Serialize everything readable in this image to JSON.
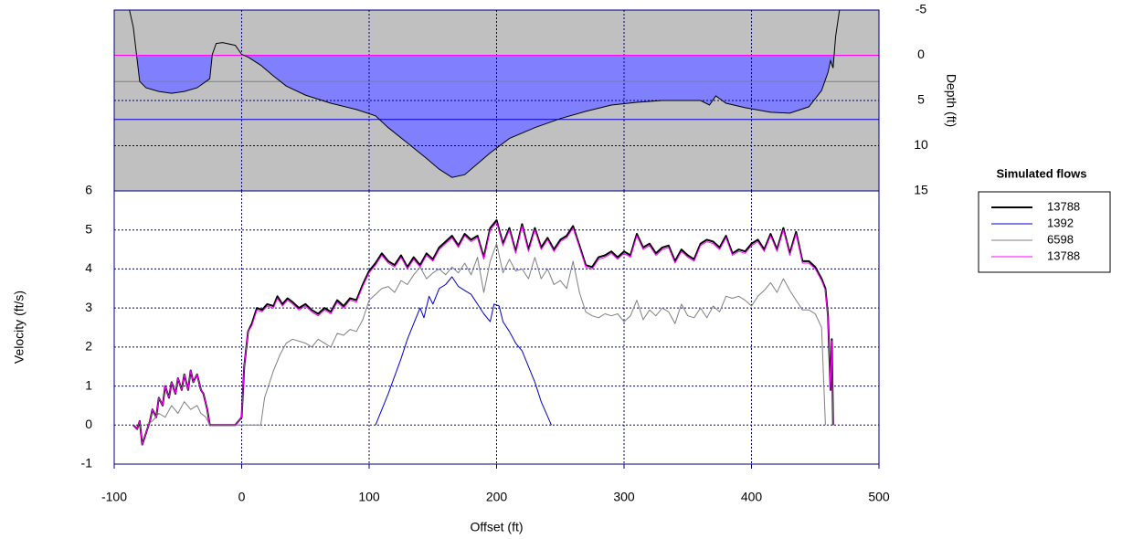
{
  "chart_data": [
    {
      "type": "area",
      "y_label": "Depth (ft)",
      "y_inverted": true,
      "xlim": [
        -100,
        500
      ],
      "xticks": [
        -100,
        0,
        100,
        200,
        300,
        400,
        500
      ],
      "ylim": [
        -5,
        15
      ],
      "yticks": [
        -5,
        0,
        5,
        10,
        15
      ],
      "grid": true,
      "background_color": "#c0c0c0",
      "fill_color": "#8080ff",
      "color": "#000000",
      "x": [
        -88,
        -85,
        -80,
        -75,
        -65,
        -55,
        -45,
        -35,
        -28,
        -25,
        -23,
        -20,
        -15,
        -5,
        0,
        5,
        15,
        25,
        35,
        50,
        70,
        90,
        105,
        115,
        130,
        145,
        155,
        165,
        175,
        185,
        195,
        210,
        230,
        250,
        270,
        290,
        310,
        330,
        360,
        367,
        372,
        380,
        395,
        415,
        430,
        445,
        455,
        460,
        462,
        464,
        466,
        469
      ],
      "values": [
        -5,
        -3.1,
        2.9,
        3.6,
        4.0,
        4.2,
        4.0,
        3.6,
        2.9,
        2.6,
        -0.1,
        -1.3,
        -1.4,
        -1.1,
        -0.1,
        0.2,
        1.1,
        2.3,
        3.4,
        4.4,
        5.3,
        6.0,
        6.7,
        8.0,
        9.7,
        11.4,
        12.6,
        13.5,
        13.2,
        12.0,
        10.8,
        9.2,
        8.0,
        7.0,
        6.2,
        5.5,
        5.2,
        5.0,
        5.0,
        5.5,
        4.5,
        5.3,
        5.8,
        6.3,
        6.4,
        5.7,
        3.9,
        1.9,
        0.6,
        1.4,
        -2.1,
        -5
      ],
      "water_levels": [
        {
          "color": "#808080",
          "value": 2.9
        },
        {
          "color": "#0000cc",
          "value": 7.1
        },
        {
          "color": "#000000",
          "value": 0
        },
        {
          "color": "#ff00ff",
          "value": 0
        }
      ]
    },
    {
      "type": "line",
      "x_label": "Offset (ft)",
      "y_label": "Velocity (ft/s)",
      "xlim": [
        -100,
        500
      ],
      "xticks": [
        -100,
        0,
        100,
        200,
        300,
        400,
        500
      ],
      "ylim": [
        -1,
        6
      ],
      "yticks": [
        -1,
        0,
        1,
        2,
        3,
        4,
        5,
        6
      ],
      "grid": true,
      "legend_title": "Simulated flows",
      "legend": "right",
      "series": [
        {
          "name": "13788",
          "color": "#000000",
          "width": 2,
          "x": [
            -85,
            -82,
            -80,
            -78,
            -75,
            -72,
            -70,
            -67,
            -65,
            -62,
            -60,
            -57,
            -55,
            -52,
            -50,
            -47,
            -45,
            -42,
            -40,
            -38,
            -35,
            -32,
            -30,
            -27,
            -25,
            -5,
            0,
            2,
            5,
            8,
            12,
            16,
            20,
            25,
            28,
            32,
            36,
            40,
            45,
            50,
            55,
            60,
            65,
            70,
            75,
            80,
            85,
            90,
            95,
            100,
            105,
            110,
            115,
            120,
            125,
            130,
            135,
            140,
            145,
            150,
            155,
            160,
            165,
            170,
            175,
            180,
            185,
            190,
            195,
            200,
            205,
            210,
            215,
            220,
            225,
            230,
            235,
            240,
            245,
            250,
            255,
            260,
            265,
            270,
            275,
            280,
            285,
            290,
            295,
            300,
            305,
            310,
            315,
            320,
            325,
            330,
            335,
            340,
            345,
            350,
            355,
            360,
            365,
            370,
            375,
            380,
            385,
            390,
            395,
            400,
            405,
            410,
            415,
            420,
            425,
            430,
            435,
            440,
            445,
            450,
            455,
            458,
            460,
            462,
            463,
            464
          ],
          "values": [
            0,
            -0.1,
            0.1,
            -0.5,
            -0.2,
            0.1,
            0.4,
            0.2,
            0.7,
            0.5,
            1.0,
            0.7,
            1.1,
            0.8,
            1.2,
            0.9,
            1.3,
            0.9,
            1.4,
            1.1,
            1.3,
            0.9,
            0.8,
            0.4,
            0,
            0,
            0.2,
            1.5,
            2.4,
            2.6,
            3.0,
            2.95,
            3.1,
            3.05,
            3.3,
            3.1,
            3.25,
            3.15,
            3.0,
            3.1,
            2.95,
            2.85,
            3.0,
            2.9,
            3.2,
            3.05,
            3.25,
            3.2,
            3.6,
            3.95,
            4.15,
            4.4,
            4.2,
            4.1,
            4.35,
            4.05,
            4.3,
            4.1,
            4.4,
            4.25,
            4.55,
            4.7,
            4.85,
            4.6,
            4.9,
            4.75,
            4.85,
            4.3,
            5.05,
            5.25,
            4.65,
            5.05,
            4.45,
            5.15,
            4.5,
            5.05,
            4.55,
            4.8,
            4.5,
            4.75,
            4.85,
            5.1,
            4.6,
            4.1,
            4.05,
            4.3,
            4.35,
            4.45,
            4.3,
            4.45,
            4.35,
            4.9,
            4.55,
            4.65,
            4.4,
            4.55,
            4.6,
            4.2,
            4.5,
            4.35,
            4.25,
            4.65,
            4.75,
            4.7,
            4.55,
            4.85,
            4.4,
            4.5,
            4.45,
            4.65,
            4.75,
            4.5,
            4.9,
            4.5,
            5.05,
            4.4,
            4.95,
            4.2,
            4.2,
            4.05,
            3.75,
            3.5,
            2.8,
            0.9,
            2.2,
            0
          ]
        },
        {
          "name": "1392",
          "color": "#0000cc",
          "width": 1,
          "x": [
            105,
            115,
            125,
            130,
            135,
            140,
            143,
            147,
            150,
            155,
            160,
            165,
            170,
            175,
            180,
            185,
            190,
            195,
            198,
            202,
            205,
            210,
            215,
            220,
            225,
            230,
            235,
            243
          ],
          "values": [
            0,
            0.8,
            1.7,
            2.2,
            2.6,
            3.0,
            2.75,
            3.3,
            3.1,
            3.5,
            3.6,
            3.8,
            3.55,
            3.45,
            3.35,
            3.1,
            2.85,
            2.65,
            3.1,
            3.05,
            2.65,
            2.4,
            2.1,
            1.9,
            1.5,
            1.1,
            0.6,
            0
          ]
        },
        {
          "name": "6598",
          "color": "#808080",
          "width": 1,
          "x": [
            -75,
            -70,
            -65,
            -60,
            -55,
            -50,
            -45,
            -40,
            -35,
            -32,
            -28,
            -25,
            15,
            18,
            25,
            30,
            35,
            40,
            50,
            55,
            60,
            70,
            75,
            80,
            85,
            90,
            95,
            100,
            105,
            110,
            115,
            120,
            125,
            130,
            135,
            140,
            145,
            150,
            155,
            160,
            165,
            170,
            175,
            180,
            185,
            190,
            195,
            200,
            205,
            210,
            215,
            220,
            225,
            230,
            235,
            240,
            245,
            250,
            255,
            260,
            265,
            270,
            275,
            280,
            285,
            290,
            295,
            300,
            305,
            310,
            315,
            320,
            325,
            330,
            335,
            340,
            345,
            350,
            355,
            360,
            365,
            370,
            375,
            380,
            385,
            390,
            395,
            400,
            405,
            410,
            415,
            420,
            425,
            430,
            435,
            440,
            445,
            450,
            455,
            458
          ],
          "values": [
            0,
            0.1,
            0.3,
            0.2,
            0.5,
            0.3,
            0.6,
            0.4,
            0.5,
            0.3,
            0.2,
            0,
            0,
            0.7,
            1.4,
            1.8,
            2.1,
            2.2,
            2.1,
            2.0,
            2.2,
            2.0,
            2.35,
            2.3,
            2.45,
            2.4,
            2.7,
            3.2,
            3.35,
            3.5,
            3.55,
            3.4,
            3.7,
            3.6,
            3.85,
            4.05,
            3.75,
            3.9,
            4.0,
            3.85,
            4.05,
            3.9,
            4.15,
            3.85,
            4.3,
            3.4,
            4.2,
            4.65,
            3.9,
            4.25,
            3.95,
            4.0,
            3.75,
            4.3,
            3.75,
            4.0,
            3.6,
            3.7,
            3.5,
            4.2,
            3.4,
            2.9,
            2.8,
            2.75,
            2.85,
            2.8,
            2.85,
            2.65,
            2.8,
            3.2,
            2.7,
            2.95,
            2.8,
            3.0,
            2.9,
            2.6,
            3.1,
            2.8,
            2.75,
            3.0,
            2.75,
            3.05,
            2.9,
            3.3,
            3.25,
            3.3,
            3.2,
            3.05,
            3.3,
            3.45,
            3.65,
            3.4,
            3.75,
            3.45,
            3.2,
            2.95,
            2.95,
            2.85,
            2.5,
            0
          ]
        },
        {
          "name": "13788",
          "color": "#ff00ff",
          "width": 1,
          "x": [
            -85,
            -82,
            -80,
            -78,
            -75,
            -72,
            -70,
            -67,
            -65,
            -62,
            -60,
            -57,
            -55,
            -52,
            -50,
            -47,
            -45,
            -42,
            -40,
            -38,
            -35,
            -32,
            -30,
            -27,
            -25,
            -5,
            0,
            2,
            5,
            8,
            12,
            16,
            20,
            25,
            28,
            32,
            36,
            40,
            45,
            50,
            55,
            60,
            65,
            70,
            75,
            80,
            85,
            90,
            95,
            100,
            105,
            110,
            115,
            120,
            125,
            130,
            135,
            140,
            145,
            150,
            155,
            160,
            165,
            170,
            175,
            180,
            185,
            190,
            195,
            200,
            205,
            210,
            215,
            220,
            225,
            230,
            235,
            240,
            245,
            250,
            255,
            260,
            265,
            270,
            275,
            280,
            285,
            290,
            295,
            300,
            305,
            310,
            315,
            320,
            325,
            330,
            335,
            340,
            345,
            350,
            355,
            360,
            365,
            370,
            375,
            380,
            385,
            390,
            395,
            400,
            405,
            410,
            415,
            420,
            425,
            430,
            435,
            440,
            445,
            450,
            455,
            458,
            460,
            462,
            463,
            464
          ],
          "values": [
            0,
            -0.1,
            0.1,
            -0.5,
            -0.2,
            0.1,
            0.4,
            0.2,
            0.7,
            0.5,
            1.0,
            0.7,
            1.1,
            0.8,
            1.2,
            0.9,
            1.3,
            0.9,
            1.4,
            1.1,
            1.3,
            0.9,
            0.8,
            0.4,
            0,
            0,
            0.2,
            1.5,
            2.4,
            2.55,
            2.95,
            2.9,
            3.05,
            3.0,
            3.25,
            3.05,
            3.2,
            3.1,
            2.95,
            3.05,
            2.9,
            2.8,
            2.95,
            2.85,
            3.15,
            3.0,
            3.2,
            3.15,
            3.55,
            3.9,
            4.1,
            4.35,
            4.15,
            4.05,
            4.3,
            4.0,
            4.25,
            4.05,
            4.35,
            4.2,
            4.5,
            4.65,
            4.8,
            4.55,
            4.85,
            4.7,
            4.8,
            4.25,
            5.0,
            5.2,
            4.6,
            5.0,
            4.4,
            5.1,
            4.45,
            5.0,
            4.5,
            4.75,
            4.45,
            4.7,
            4.8,
            5.05,
            4.55,
            4.05,
            4.0,
            4.25,
            4.3,
            4.4,
            4.25,
            4.4,
            4.3,
            4.85,
            4.5,
            4.6,
            4.35,
            4.5,
            4.55,
            4.15,
            4.45,
            4.3,
            4.2,
            4.6,
            4.7,
            4.65,
            4.5,
            4.8,
            4.35,
            4.45,
            4.4,
            4.6,
            4.7,
            4.45,
            4.85,
            4.45,
            5.0,
            4.35,
            4.9,
            4.15,
            4.15,
            4.0,
            3.7,
            3.45,
            2.75,
            0.9,
            2.15,
            0
          ]
        }
      ]
    }
  ]
}
